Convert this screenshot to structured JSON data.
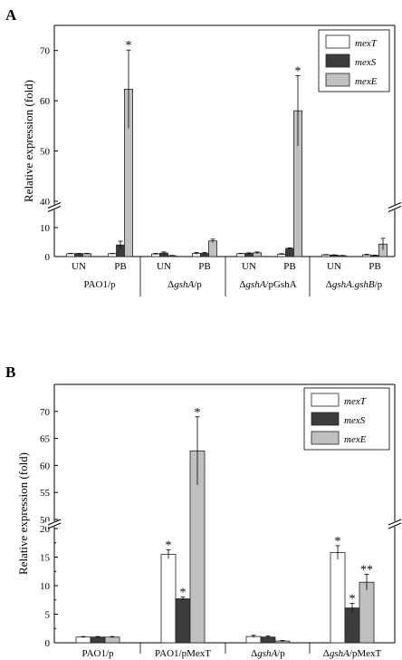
{
  "chart_data": [
    {
      "type": "bar",
      "panel_label": "A",
      "ylabel": "Relative expression (fold)",
      "broken_axis": {
        "lower": [
          0,
          15
        ],
        "upper": [
          40,
          75
        ]
      },
      "yticks_lower": [
        "0",
        "10"
      ],
      "yticks_upper": [
        "40",
        "50",
        "60",
        "70"
      ],
      "categories": [
        "UN",
        "PB",
        "UN",
        "PB",
        "UN",
        "PB",
        "UN",
        "PB"
      ],
      "groups": [
        {
          "label": "PAO1/p",
          "prefix": "",
          "italic": "",
          "suffix": "PAO1/p"
        },
        {
          "label": "ΔgshA/p",
          "prefix": "Δ",
          "italic": "gshA",
          "suffix": "/p"
        },
        {
          "label": "ΔgshA/pGshA",
          "prefix": "Δ",
          "italic": "gshA",
          "suffix": "/pGshA"
        },
        {
          "label": "ΔgshA.gshB/p",
          "prefix": "Δ",
          "italic": "gshA.gshB",
          "suffix": "/p"
        }
      ],
      "series": [
        {
          "name": "mexT",
          "color": "#ffffff",
          "values": [
            1.0,
            1.0,
            0.9,
            1.1,
            1.0,
            0.8,
            0.6,
            0.6
          ],
          "errors": [
            0.1,
            0.1,
            0.2,
            0.3,
            0.1,
            0.2,
            0.1,
            0.2
          ]
        },
        {
          "name": "mexS",
          "color": "#3c3c3c",
          "values": [
            1.0,
            4.0,
            1.2,
            1.1,
            1.1,
            2.8,
            0.5,
            0.4
          ],
          "errors": [
            0.1,
            1.3,
            0.4,
            0.3,
            0.2,
            0.2,
            0.1,
            0.1
          ]
        },
        {
          "name": "mexE",
          "color": "#c0c0c0",
          "values": [
            1.0,
            62.3,
            0.3,
            5.4,
            1.3,
            58.0,
            0.3,
            4.3
          ],
          "errors": [
            0.1,
            7.8,
            0.1,
            0.6,
            0.3,
            7.0,
            0.1,
            2.0
          ]
        }
      ],
      "significance": [
        {
          "category_index": 1,
          "series": "mexE",
          "mark": "*"
        },
        {
          "category_index": 5,
          "series": "mexE",
          "mark": "*"
        }
      ],
      "legend": "top-right"
    },
    {
      "type": "bar",
      "panel_label": "B",
      "ylabel": "Relative expression (fold)",
      "broken_axis": {
        "lower": [
          0,
          20
        ],
        "upper": [
          50,
          75
        ]
      },
      "yticks_lower": [
        "0",
        "5",
        "10",
        "15",
        "20"
      ],
      "yticks_upper": [
        "50",
        "55",
        "60",
        "65",
        "70"
      ],
      "groups": [
        {
          "label": "PAO1/p",
          "prefix": "",
          "italic": "",
          "suffix": "PAO1/p"
        },
        {
          "label": "PAO1/pMexT",
          "prefix": "",
          "italic": "",
          "suffix": "PAO1/pMexT"
        },
        {
          "label": "ΔgshA/p",
          "prefix": "Δ",
          "italic": "gshA",
          "suffix": "/p"
        },
        {
          "label": "ΔgshA/pMexT",
          "prefix": "Δ",
          "italic": "gshA",
          "suffix": "/pMexT"
        }
      ],
      "series": [
        {
          "name": "mexT",
          "color": "#ffffff",
          "values": [
            1.0,
            15.5,
            1.1,
            15.8
          ],
          "errors": [
            0.1,
            0.8,
            0.2,
            1.2
          ]
        },
        {
          "name": "mexS",
          "color": "#3c3c3c",
          "values": [
            1.0,
            7.7,
            1.0,
            6.1
          ],
          "errors": [
            0.1,
            0.3,
            0.2,
            0.8
          ]
        },
        {
          "name": "mexE",
          "color": "#c0c0c0",
          "values": [
            1.0,
            62.7,
            0.3,
            10.6
          ],
          "errors": [
            0.1,
            6.3,
            0.1,
            1.4
          ]
        }
      ],
      "significance": [
        {
          "group_index": 1,
          "series": "mexT",
          "mark": "*"
        },
        {
          "group_index": 1,
          "series": "mexS",
          "mark": "*"
        },
        {
          "group_index": 1,
          "series": "mexE",
          "mark": "*"
        },
        {
          "group_index": 3,
          "series": "mexT",
          "mark": "*"
        },
        {
          "group_index": 3,
          "series": "mexS",
          "mark": "*"
        },
        {
          "group_index": 3,
          "series": "mexE",
          "mark": "**"
        }
      ],
      "legend": "top-right"
    }
  ]
}
